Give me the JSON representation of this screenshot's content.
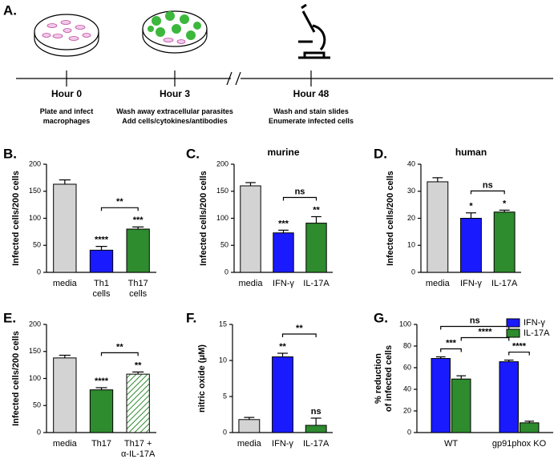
{
  "diagram": {
    "label": "A.",
    "timepoints": [
      {
        "label": "Hour 0",
        "caption": [
          "Plate and infect",
          "macrophages"
        ]
      },
      {
        "label": "Hour 3",
        "caption": [
          "Wash away extracellular parasites",
          "Add cells/cytokines/antibodies"
        ]
      },
      {
        "label": "Hour 48",
        "caption": [
          "Wash and stain slides",
          "Enumerate infected cells"
        ]
      }
    ]
  },
  "chart_data": [
    {
      "type": "bar",
      "panel_label": "B.",
      "ylabel": "Infected cells/200 cells",
      "categories": [
        "media",
        [
          "Th1",
          "cells"
        ],
        [
          "Th17",
          "cells"
        ]
      ],
      "values": [
        163,
        41,
        80
      ],
      "errors": [
        8,
        7,
        4
      ],
      "colors": [
        "#d3d3d3",
        "#1a1aff",
        "#2e8b2e"
      ],
      "hatched": [
        false,
        false,
        false
      ],
      "value_annotations": [
        null,
        "****",
        "***"
      ],
      "brackets": [
        {
          "label": "**",
          "from": 1,
          "to": 2
        }
      ],
      "ylim": [
        0,
        200
      ],
      "yticks": [
        0,
        50,
        100,
        150,
        200
      ]
    },
    {
      "type": "bar",
      "panel_label": "C.",
      "title": "murine",
      "ylabel": "Infected cells/200 cells",
      "categories": [
        "media",
        "IFN-γ",
        "IL-17A"
      ],
      "values": [
        160,
        73,
        91
      ],
      "errors": [
        6,
        5,
        12
      ],
      "colors": [
        "#d3d3d3",
        "#1a1aff",
        "#2e8b2e"
      ],
      "hatched": [
        false,
        false,
        false
      ],
      "value_annotations": [
        null,
        "***",
        "**"
      ],
      "brackets": [
        {
          "label": "ns",
          "from": 1,
          "to": 2
        }
      ],
      "ylim": [
        0,
        200
      ],
      "yticks": [
        0,
        50,
        100,
        150,
        200
      ]
    },
    {
      "type": "bar",
      "panel_label": "D.",
      "title": "human",
      "ylabel": "Infected cells/200 cells",
      "categories": [
        "media",
        "IFN-γ",
        "IL-17A"
      ],
      "values": [
        33.5,
        20,
        22.3
      ],
      "errors": [
        1.5,
        2,
        0.7
      ],
      "colors": [
        "#d3d3d3",
        "#1a1aff",
        "#2e8b2e"
      ],
      "hatched": [
        false,
        false,
        false
      ],
      "value_annotations": [
        null,
        "*",
        "*"
      ],
      "brackets": [
        {
          "label": "ns",
          "from": 1,
          "to": 2
        }
      ],
      "ylim": [
        0,
        40
      ],
      "yticks": [
        0,
        10,
        20,
        30,
        40
      ]
    },
    {
      "type": "bar",
      "panel_label": "E.",
      "ylabel": "Infected cells/200 cells",
      "categories": [
        "media",
        "Th17",
        [
          "Th17 +",
          "α-IL-17A"
        ]
      ],
      "values": [
        138,
        79,
        108
      ],
      "errors": [
        5,
        4,
        4
      ],
      "colors": [
        "#d3d3d3",
        "#2e8b2e",
        "#2e8b2e"
      ],
      "hatched": [
        false,
        false,
        true
      ],
      "value_annotations": [
        null,
        "****",
        "**"
      ],
      "brackets": [
        {
          "label": "**",
          "from": 1,
          "to": 2
        }
      ],
      "ylim": [
        0,
        200
      ],
      "yticks": [
        0,
        50,
        100,
        150,
        200
      ]
    },
    {
      "type": "bar",
      "panel_label": "F.",
      "ylabel": "nitric oxide (μM)",
      "categories": [
        "media",
        "IFN-γ",
        "IL-17A"
      ],
      "values": [
        1.8,
        10.5,
        1.0
      ],
      "errors": [
        0.3,
        0.5,
        1.0
      ],
      "colors": [
        "#d3d3d3",
        "#1a1aff",
        "#2e8b2e"
      ],
      "hatched": [
        false,
        false,
        false
      ],
      "value_annotations": [
        null,
        "**",
        "ns"
      ],
      "brackets": [
        {
          "label": "**",
          "from": 1,
          "to": 2
        }
      ],
      "ylim": [
        0,
        15
      ],
      "yticks": [
        0,
        5,
        10,
        15
      ]
    },
    {
      "type": "grouped_bar",
      "panel_label": "G.",
      "ylabel": [
        "% reduction",
        "of infected cells"
      ],
      "categories": [
        "WT",
        "gp91phox KO"
      ],
      "series": [
        {
          "name": "IFN-γ",
          "color": "#1a1aff",
          "values": [
            68.5,
            65.5
          ],
          "errors": [
            1.5,
            1.5
          ]
        },
        {
          "name": "IL-17A",
          "color": "#2e8b2e",
          "values": [
            49.5,
            9
          ],
          "errors": [
            3,
            1.5
          ]
        }
      ],
      "brackets": [
        {
          "label": "***",
          "from": [
            0,
            0
          ],
          "to": [
            1,
            0
          ]
        },
        {
          "label": "****",
          "from": [
            0,
            1
          ],
          "to": [
            1,
            1
          ]
        },
        {
          "label": "****",
          "from": [
            1,
            0
          ],
          "to": [
            0,
            1
          ]
        },
        {
          "label": "ns",
          "from": [
            0,
            0
          ],
          "to": [
            0,
            1
          ]
        }
      ],
      "legend": "upper right",
      "ylim": [
        0,
        100
      ],
      "yticks": [
        0,
        20,
        40,
        60,
        80,
        100
      ]
    }
  ]
}
